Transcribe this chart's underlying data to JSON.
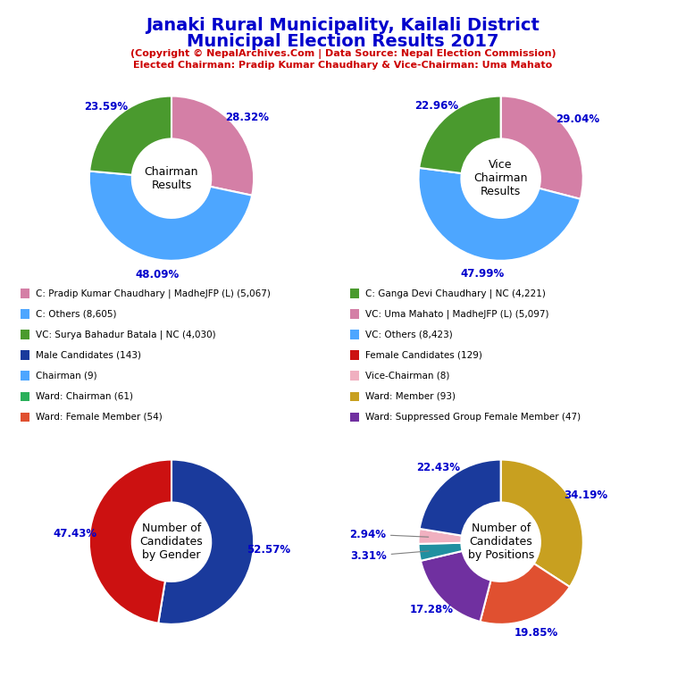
{
  "title_line1": "Janaki Rural Municipality, Kailali District",
  "title_line2": "Municipal Election Results 2017",
  "subtitle1": "(Copyright © NepalArchives.Com | Data Source: Nepal Election Commission)",
  "subtitle2": "Elected Chairman: Pradip Kumar Chaudhary & Vice-Chairman: Uma Mahato",
  "title_color": "#0000cc",
  "subtitle_color": "#cc0000",
  "chairman": {
    "values": [
      28.32,
      48.09,
      23.59
    ],
    "colors": [
      "#d47fa6",
      "#4da6ff",
      "#4a9a2e"
    ],
    "label": "Chairman\nResults",
    "pct_labels": [
      "28.32%",
      "48.09%",
      "23.59%"
    ],
    "pct_angles_override": [
      true,
      true,
      true
    ]
  },
  "vicechairman": {
    "values": [
      29.04,
      47.99,
      22.96
    ],
    "colors": [
      "#d47fa6",
      "#4da6ff",
      "#4a9a2e"
    ],
    "label": "Vice\nChairman\nResults",
    "pct_labels": [
      "29.04%",
      "47.99%",
      "22.96%"
    ]
  },
  "gender": {
    "values": [
      52.57,
      47.43
    ],
    "colors": [
      "#1a3a9c",
      "#cc1111"
    ],
    "label": "Number of\nCandidates\nby Gender",
    "pct_labels": [
      "52.57%",
      "47.43%"
    ]
  },
  "positions": {
    "values": [
      34.19,
      19.85,
      17.28,
      3.31,
      2.94,
      22.43
    ],
    "colors": [
      "#c8a020",
      "#e05030",
      "#7030a0",
      "#2090a0",
      "#f0b0c0",
      "#1a3a9c"
    ],
    "label": "Number of\nCandidates\nby Positions",
    "pct_labels": [
      "34.19%",
      "19.85%",
      "17.28%",
      "3.31%",
      "2.94%",
      "22.43%"
    ]
  },
  "legend_items_left": [
    {
      "label": "C: Pradip Kumar Chaudhary | MadheJFP (L) (5,067)",
      "color": "#d47fa6"
    },
    {
      "label": "C: Others (8,605)",
      "color": "#4da6ff"
    },
    {
      "label": "VC: Surya Bahadur Batala | NC (4,030)",
      "color": "#4a9a2e"
    },
    {
      "label": "Male Candidates (143)",
      "color": "#1a3a9c"
    },
    {
      "label": "Chairman (9)",
      "color": "#4da6ff"
    },
    {
      "label": "Ward: Chairman (61)",
      "color": "#2ab05a"
    },
    {
      "label": "Ward: Female Member (54)",
      "color": "#e05030"
    }
  ],
  "legend_items_right": [
    {
      "label": "C: Ganga Devi Chaudhary | NC (4,221)",
      "color": "#4a9a2e"
    },
    {
      "label": "VC: Uma Mahato | MadheJFP (L) (5,097)",
      "color": "#d47fa6"
    },
    {
      "label": "VC: Others (8,423)",
      "color": "#4da6ff"
    },
    {
      "label": "Female Candidates (129)",
      "color": "#cc1111"
    },
    {
      "label": "Vice-Chairman (8)",
      "color": "#f0b0c0"
    },
    {
      "label": "Ward: Member (93)",
      "color": "#c8a020"
    },
    {
      "label": "Ward: Suppressed Group Female Member (47)",
      "color": "#7030a0"
    }
  ],
  "pct_color": "#0000cc",
  "center_text_color": "#000000",
  "background_color": "#ffffff"
}
